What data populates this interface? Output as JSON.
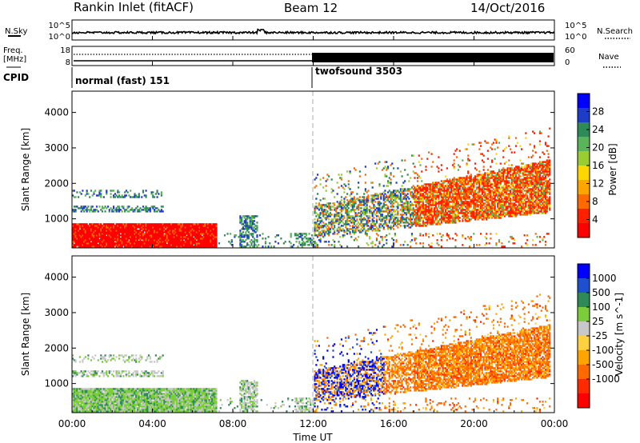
{
  "header": {
    "station": "Rankin Inlet (fitACF)",
    "beam": "Beam 12",
    "date": "14/Oct/2016"
  },
  "top_panels": {
    "nsky_label": "N.Sky",
    "nsky_ticks": [
      "10^5",
      "10^0"
    ],
    "nsearch_label": "N.Search",
    "nsearch_ticks": [
      "10^5",
      "10^0"
    ],
    "freq_label": "Freq.",
    "freq_unit": "[MHz]",
    "freq_ticks": [
      "18",
      "8"
    ],
    "nave_label": "Nave",
    "nave_ticks": [
      "60",
      "0"
    ],
    "cpid_label": "CPID",
    "cpid_segments": [
      {
        "label": "normal (fast) 151",
        "start_hour": 0
      },
      {
        "label": "twofsound 3503",
        "start_hour": 12
      }
    ]
  },
  "colors": {
    "power_scale": [
      "#0000ff",
      "#1e3cc8",
      "#2e8b57",
      "#5ab45a",
      "#9acd32",
      "#ffd700",
      "#ffa500",
      "#ff6a00",
      "#ff2000",
      "#ff0000"
    ],
    "velocity_scale": [
      "#0000ff",
      "#1e4fd0",
      "#2e8b57",
      "#7ccd3c",
      "#c8c8c8",
      "#ffd040",
      "#ffa500",
      "#ff6a00",
      "#ff2a00",
      "#ff0000"
    ]
  },
  "chart_data": [
    {
      "type": "heatmap",
      "panel": "power",
      "ylabel": "Slant Range [km]",
      "ylim": [
        180,
        4600
      ],
      "yticks": [
        "1000",
        "2000",
        "3000",
        "4000"
      ],
      "xlim": [
        0,
        24
      ],
      "colorbar_label": "Power [dB]",
      "colorbar_ticks": [
        "4",
        "8",
        "12",
        "16",
        "20",
        "24",
        "28"
      ],
      "colorbar_range": [
        0,
        32
      ]
    },
    {
      "type": "heatmap",
      "panel": "velocity",
      "ylabel": "Slant Range [km]",
      "ylim": [
        180,
        4600
      ],
      "yticks": [
        "1000",
        "2000",
        "3000",
        "4000"
      ],
      "xlim": [
        0,
        24
      ],
      "xticks": [
        "00:00",
        "04:00",
        "08:00",
        "12:00",
        "16:00",
        "20:00",
        "00:00"
      ],
      "xlabel": "Time UT",
      "colorbar_label": "Velocity [m s^-1]",
      "colorbar_ticks": [
        "1000",
        "500",
        "100",
        "25",
        "-25",
        "-100",
        "-500",
        "-1000"
      ]
    }
  ]
}
